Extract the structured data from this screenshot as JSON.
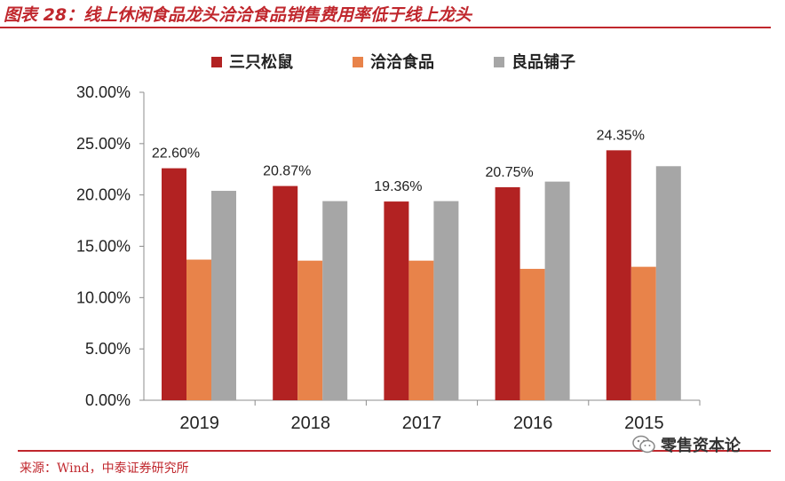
{
  "header": {
    "title": "图表 28：线上休闲食品龙头洽洽食品销售费用率低于线上龙头"
  },
  "footer": {
    "source": "来源：Wind，中泰证券研究所",
    "watermark": "零售资本论",
    "watermark_icon": "wechat-icon"
  },
  "colors": {
    "accent": "#c0272d",
    "series": [
      "#b22222",
      "#e8834a",
      "#a6a6a6"
    ]
  },
  "chart_data": {
    "type": "bar",
    "title": "",
    "categories": [
      "2019",
      "2018",
      "2017",
      "2016",
      "2015"
    ],
    "series": [
      {
        "name": "三只松鼠",
        "values": [
          22.6,
          20.87,
          19.36,
          20.75,
          24.35
        ]
      },
      {
        "name": "洽洽食品",
        "values": [
          13.7,
          13.6,
          13.6,
          12.8,
          13.0
        ]
      },
      {
        "name": "良品铺子",
        "values": [
          20.4,
          19.4,
          19.4,
          21.3,
          22.8
        ]
      }
    ],
    "data_labels": [
      {
        "series": 0,
        "category": 0,
        "text": "22.60%"
      },
      {
        "series": 0,
        "category": 1,
        "text": "20.87%"
      },
      {
        "series": 0,
        "category": 2,
        "text": "19.36%"
      },
      {
        "series": 0,
        "category": 3,
        "text": "20.75%"
      },
      {
        "series": 0,
        "category": 4,
        "text": "24.35%"
      }
    ],
    "yticks": [
      "0.00%",
      "5.00%",
      "10.00%",
      "15.00%",
      "20.00%",
      "25.00%",
      "30.00%"
    ],
    "ylim": [
      0,
      30
    ],
    "xlabel": "",
    "ylabel": "",
    "legend": "top-center",
    "grid": false
  }
}
